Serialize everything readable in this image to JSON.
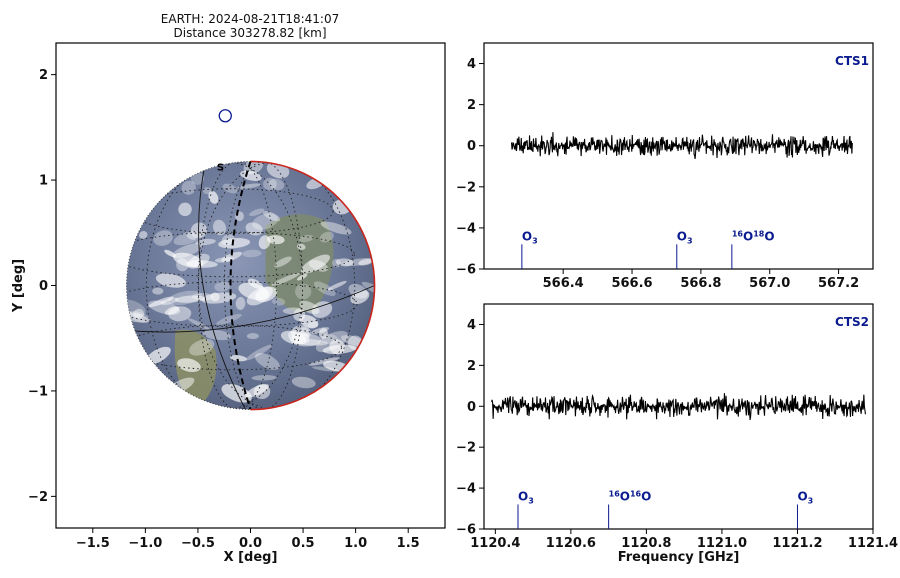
{
  "figure": {
    "title_line1": "EARTH: 2024-08-21T18:41:07",
    "title_line2": "Distance 303278.82 [km]"
  },
  "chart_data": [
    {
      "type": "scatter",
      "panel": "earth-view",
      "xlabel": "X [deg]",
      "ylabel": "Y [deg]",
      "xlim": [
        -1.85,
        1.85
      ],
      "ylim": [
        -2.3,
        2.3
      ],
      "xticks": [
        "−1.5",
        "−1.0",
        "−0.5",
        "0.0",
        "0.5",
        "1.0",
        "1.5"
      ],
      "xtick_values": [
        -1.5,
        -1.0,
        -0.5,
        0.0,
        0.5,
        1.0,
        1.5
      ],
      "yticks": [
        "−2",
        "−1",
        "0",
        "1",
        "2"
      ],
      "ytick_values": [
        -2,
        -1,
        0,
        1,
        2
      ],
      "earth_center": [
        0.0,
        0.0
      ],
      "earth_radius_deg": 1.18,
      "pole_label": "S",
      "marker": {
        "x": -0.24,
        "y": 1.61,
        "color": "#0a1a8f"
      },
      "colors": {
        "limb": "#c8251d",
        "terminator": "#000000",
        "marker": "#0a1a8f"
      }
    },
    {
      "type": "line",
      "panel": "cts1",
      "tag": "CTS1",
      "xlim": [
        566.17,
        567.3
      ],
      "ylim": [
        -6,
        5
      ],
      "xticks": [
        "566.4",
        "566.6",
        "566.8",
        "567.0",
        "567.2"
      ],
      "xtick_values": [
        566.4,
        566.6,
        566.8,
        567.0,
        567.2
      ],
      "yticks": [
        "4",
        "2",
        "0",
        "−2",
        "−4",
        "−6"
      ],
      "ytick_values": [
        4,
        2,
        0,
        -2,
        -4,
        -6
      ],
      "x_start": 566.25,
      "x_end": 567.24,
      "noise_amplitude": 0.35,
      "lines": [
        {
          "x": 566.28,
          "label": "O",
          "sub": "3",
          "sup_pre": ""
        },
        {
          "x": 566.73,
          "label": "O",
          "sub": "3",
          "sup_pre": ""
        },
        {
          "x": 566.89,
          "label": "O",
          "sub": "",
          "sup_pre": "16",
          "label2": "O",
          "sup_mid": "18",
          "label3": "O"
        }
      ],
      "line_top_y": -4.8,
      "colors": {
        "trace": "#000000",
        "marker": "#0a1a8f"
      }
    },
    {
      "type": "line",
      "panel": "cts2",
      "tag": "CTS2",
      "xlabel": "Frequency [GHz]",
      "xlim": [
        1120.37,
        1121.4
      ],
      "ylim": [
        -6,
        5
      ],
      "xticks": [
        "1120.4",
        "1120.6",
        "1120.8",
        "1121.0",
        "1121.2",
        "1121.4"
      ],
      "xtick_values": [
        1120.4,
        1120.6,
        1120.8,
        1121.0,
        1121.2,
        1121.4
      ],
      "yticks": [
        "4",
        "2",
        "0",
        "−2",
        "−4",
        "−6"
      ],
      "ytick_values": [
        4,
        2,
        0,
        -2,
        -4,
        -6
      ],
      "x_start": 1120.39,
      "x_end": 1121.38,
      "noise_amplitude": 0.38,
      "lines": [
        {
          "x": 1120.46,
          "label": "O",
          "sub": "3",
          "sup_pre": ""
        },
        {
          "x": 1120.7,
          "label": "O",
          "sub": "",
          "sup_pre": "16",
          "label2": "O",
          "sup_mid": "16",
          "label3": "O"
        },
        {
          "x": 1121.2,
          "label": "O",
          "sub": "3",
          "sup_pre": ""
        }
      ],
      "line_top_y": -4.8,
      "colors": {
        "trace": "#000000",
        "marker": "#0a1a8f"
      }
    }
  ]
}
